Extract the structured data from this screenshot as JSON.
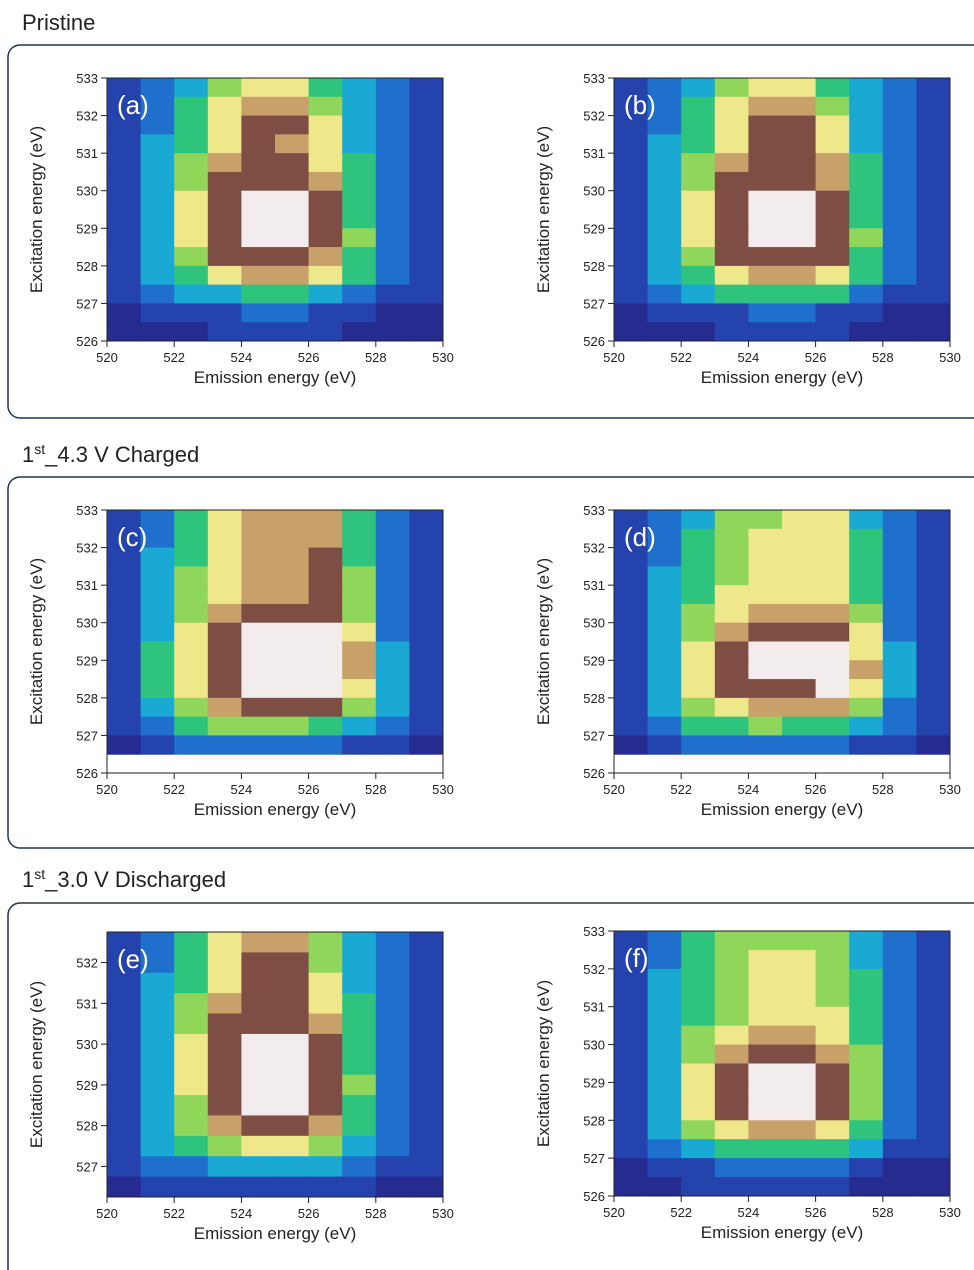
{
  "sections": [
    {
      "title": "Pristine"
    },
    {
      "title_num": "1",
      "title_sup": "st",
      "title_rest": "_4.3 V Charged"
    },
    {
      "title_num": "1",
      "title_sup": "st",
      "title_rest": "_3.0 V Discharged"
    }
  ],
  "colormap": [
    "#262b8f",
    "#2443ac",
    "#1f6fcc",
    "#1aa9d2",
    "#2fc47e",
    "#8fd65a",
    "#eee88a",
    "#c8a06a",
    "#7e4e44",
    "#f3ecec"
  ],
  "chart_data": [
    {
      "type": "heatmap",
      "title": "(a)",
      "xlabel": "Emission energy (eV)",
      "ylabel": "Excitation energy (eV)",
      "xlim": [
        520,
        530
      ],
      "ylim": [
        526,
        533
      ],
      "xticks": [
        520,
        522,
        524,
        526,
        528,
        530
      ],
      "yticks": [
        526,
        527,
        528,
        529,
        530,
        531,
        532,
        533
      ],
      "xbins": [
        520,
        521,
        522,
        523,
        524,
        525,
        526,
        527,
        528,
        529,
        530
      ],
      "ybins": [
        533,
        532.5,
        532,
        531.5,
        531,
        530.5,
        530,
        529.5,
        529,
        528.5,
        528,
        527.5,
        527,
        526.5,
        526
      ],
      "z": [
        [
          1,
          2,
          3,
          5,
          6,
          6,
          4,
          3,
          2,
          1
        ],
        [
          1,
          2,
          4,
          6,
          7,
          7,
          5,
          3,
          2,
          1
        ],
        [
          1,
          2,
          4,
          6,
          8,
          8,
          6,
          3,
          2,
          1
        ],
        [
          1,
          3,
          4,
          6,
          8,
          7,
          6,
          3,
          2,
          1
        ],
        [
          1,
          3,
          5,
          7,
          8,
          8,
          6,
          4,
          2,
          1
        ],
        [
          1,
          3,
          5,
          8,
          8,
          8,
          7,
          4,
          2,
          1
        ],
        [
          1,
          3,
          6,
          8,
          9,
          9,
          8,
          4,
          2,
          1
        ],
        [
          1,
          3,
          6,
          8,
          9,
          9,
          8,
          4,
          2,
          1
        ],
        [
          1,
          3,
          6,
          8,
          9,
          9,
          8,
          5,
          2,
          1
        ],
        [
          1,
          3,
          5,
          8,
          8,
          8,
          7,
          4,
          2,
          1
        ],
        [
          1,
          3,
          4,
          6,
          7,
          7,
          6,
          4,
          2,
          1
        ],
        [
          1,
          2,
          3,
          3,
          4,
          4,
          3,
          2,
          1,
          1
        ],
        [
          0,
          1,
          1,
          1,
          2,
          2,
          1,
          1,
          0,
          0
        ],
        [
          0,
          0,
          0,
          1,
          1,
          1,
          1,
          0,
          0,
          0
        ]
      ]
    },
    {
      "type": "heatmap",
      "title": "(b)",
      "xlabel": "Emission energy (eV)",
      "ylabel": "Excitation energy (eV)",
      "xlim": [
        520,
        530
      ],
      "ylim": [
        526,
        533
      ],
      "xticks": [
        520,
        522,
        524,
        526,
        528,
        530
      ],
      "yticks": [
        526,
        527,
        528,
        529,
        530,
        531,
        532,
        533
      ],
      "xbins": [
        520,
        521,
        522,
        523,
        524,
        525,
        526,
        527,
        528,
        529,
        530
      ],
      "ybins": [
        533,
        532.5,
        532,
        531.5,
        531,
        530.5,
        530,
        529.5,
        529,
        528.5,
        528,
        527.5,
        527,
        526.5,
        526
      ],
      "z": [
        [
          1,
          2,
          3,
          5,
          6,
          6,
          4,
          3,
          2,
          1
        ],
        [
          1,
          2,
          4,
          6,
          7,
          7,
          5,
          3,
          2,
          1
        ],
        [
          1,
          2,
          4,
          6,
          8,
          8,
          6,
          3,
          2,
          1
        ],
        [
          1,
          3,
          4,
          6,
          8,
          8,
          6,
          3,
          2,
          1
        ],
        [
          1,
          3,
          5,
          7,
          8,
          8,
          7,
          4,
          2,
          1
        ],
        [
          1,
          3,
          5,
          8,
          8,
          8,
          7,
          4,
          2,
          1
        ],
        [
          1,
          3,
          6,
          8,
          9,
          9,
          8,
          4,
          2,
          1
        ],
        [
          1,
          3,
          6,
          8,
          9,
          9,
          8,
          4,
          2,
          1
        ],
        [
          1,
          3,
          6,
          8,
          9,
          9,
          8,
          5,
          2,
          1
        ],
        [
          1,
          3,
          5,
          8,
          8,
          8,
          8,
          4,
          2,
          1
        ],
        [
          1,
          3,
          4,
          6,
          7,
          7,
          6,
          4,
          2,
          1
        ],
        [
          1,
          2,
          3,
          4,
          4,
          4,
          4,
          2,
          1,
          1
        ],
        [
          0,
          1,
          1,
          1,
          2,
          2,
          1,
          1,
          0,
          0
        ],
        [
          0,
          0,
          0,
          1,
          1,
          1,
          1,
          0,
          0,
          0
        ]
      ]
    },
    {
      "type": "heatmap",
      "title": "(c)",
      "xlabel": "Emission energy (eV)",
      "ylabel": "Excitation energy (eV)",
      "xlim": [
        520,
        530
      ],
      "ylim": [
        526,
        533
      ],
      "xticks": [
        520,
        522,
        524,
        526,
        528,
        530
      ],
      "yticks": [
        526,
        527,
        528,
        529,
        530,
        531,
        532,
        533
      ],
      "xbins": [
        520,
        521,
        522,
        523,
        524,
        525,
        526,
        527,
        528,
        529,
        530
      ],
      "ybins": [
        533,
        532.5,
        532,
        531.5,
        531,
        530.5,
        530,
        529.5,
        529,
        528.5,
        528,
        527.5,
        527,
        526.5
      ],
      "z": [
        [
          1,
          2,
          4,
          6,
          7,
          7,
          7,
          4,
          2,
          1
        ],
        [
          1,
          2,
          4,
          6,
          7,
          7,
          7,
          4,
          2,
          1
        ],
        [
          1,
          3,
          4,
          6,
          7,
          7,
          8,
          4,
          2,
          1
        ],
        [
          1,
          3,
          5,
          6,
          7,
          7,
          8,
          5,
          2,
          1
        ],
        [
          1,
          3,
          5,
          6,
          7,
          7,
          8,
          5,
          2,
          1
        ],
        [
          1,
          3,
          5,
          7,
          8,
          8,
          8,
          5,
          2,
          1
        ],
        [
          1,
          3,
          6,
          8,
          9,
          9,
          9,
          6,
          2,
          1
        ],
        [
          1,
          4,
          6,
          8,
          9,
          9,
          9,
          7,
          3,
          1
        ],
        [
          1,
          4,
          6,
          8,
          9,
          9,
          9,
          7,
          3,
          1
        ],
        [
          1,
          4,
          6,
          8,
          9,
          9,
          9,
          6,
          3,
          1
        ],
        [
          1,
          3,
          5,
          7,
          8,
          8,
          8,
          5,
          3,
          1
        ],
        [
          1,
          2,
          4,
          5,
          5,
          5,
          4,
          3,
          2,
          1
        ],
        [
          0,
          1,
          2,
          2,
          2,
          2,
          2,
          1,
          1,
          0
        ]
      ]
    },
    {
      "type": "heatmap",
      "title": "(d)",
      "xlabel": "Emission energy (eV)",
      "ylabel": "Excitation energy (eV)",
      "xlim": [
        520,
        530
      ],
      "ylim": [
        526,
        533
      ],
      "xticks": [
        520,
        522,
        524,
        526,
        528,
        530
      ],
      "yticks": [
        526,
        527,
        528,
        529,
        530,
        531,
        532,
        533
      ],
      "xbins": [
        520,
        521,
        522,
        523,
        524,
        525,
        526,
        527,
        528,
        529,
        530
      ],
      "ybins": [
        533,
        532.5,
        532,
        531.5,
        531,
        530.5,
        530,
        529.5,
        529,
        528.5,
        528,
        527.5,
        527,
        526.5
      ],
      "z": [
        [
          1,
          2,
          3,
          5,
          5,
          6,
          6,
          3,
          2,
          1
        ],
        [
          1,
          2,
          4,
          5,
          6,
          6,
          6,
          4,
          2,
          1
        ],
        [
          1,
          2,
          4,
          5,
          6,
          6,
          6,
          4,
          2,
          1
        ],
        [
          1,
          3,
          4,
          5,
          6,
          6,
          6,
          4,
          2,
          1
        ],
        [
          1,
          3,
          4,
          6,
          6,
          6,
          6,
          4,
          2,
          1
        ],
        [
          1,
          3,
          5,
          6,
          7,
          7,
          7,
          5,
          2,
          1
        ],
        [
          1,
          3,
          5,
          7,
          8,
          8,
          8,
          6,
          2,
          1
        ],
        [
          1,
          3,
          6,
          8,
          9,
          9,
          9,
          6,
          3,
          1
        ],
        [
          1,
          3,
          6,
          8,
          9,
          9,
          9,
          7,
          3,
          1
        ],
        [
          1,
          3,
          6,
          8,
          8,
          8,
          9,
          6,
          3,
          1
        ],
        [
          1,
          3,
          5,
          6,
          7,
          7,
          7,
          5,
          2,
          1
        ],
        [
          1,
          2,
          4,
          4,
          5,
          4,
          4,
          3,
          2,
          1
        ],
        [
          0,
          1,
          2,
          2,
          2,
          2,
          2,
          1,
          1,
          0
        ]
      ]
    },
    {
      "type": "heatmap",
      "title": "(e)",
      "xlabel": "Emission energy (eV)",
      "ylabel": "Excitation energy (eV)",
      "xlim": [
        520,
        530
      ],
      "ylim": [
        526.25,
        532.75
      ],
      "xticks": [
        520,
        522,
        524,
        526,
        528,
        530
      ],
      "yticks": [
        527,
        528,
        529,
        530,
        531,
        532
      ],
      "xbins": [
        520,
        521,
        522,
        523,
        524,
        525,
        526,
        527,
        528,
        529,
        530
      ],
      "ybins": [
        532.75,
        532.25,
        531.75,
        531.25,
        530.75,
        530.25,
        529.75,
        529.25,
        528.75,
        528.25,
        527.75,
        527.25,
        526.75,
        526.25
      ],
      "z": [
        [
          1,
          2,
          4,
          6,
          7,
          7,
          5,
          3,
          2,
          1
        ],
        [
          1,
          2,
          4,
          6,
          8,
          8,
          5,
          3,
          2,
          1
        ],
        [
          1,
          3,
          4,
          6,
          8,
          8,
          6,
          3,
          2,
          1
        ],
        [
          1,
          3,
          5,
          7,
          8,
          8,
          6,
          4,
          2,
          1
        ],
        [
          1,
          3,
          5,
          8,
          8,
          8,
          7,
          4,
          2,
          1
        ],
        [
          1,
          3,
          6,
          8,
          9,
          9,
          8,
          4,
          2,
          1
        ],
        [
          1,
          3,
          6,
          8,
          9,
          9,
          8,
          4,
          2,
          1
        ],
        [
          1,
          3,
          6,
          8,
          9,
          9,
          8,
          5,
          2,
          1
        ],
        [
          1,
          3,
          5,
          8,
          9,
          9,
          8,
          4,
          2,
          1
        ],
        [
          1,
          3,
          5,
          7,
          8,
          8,
          7,
          4,
          2,
          1
        ],
        [
          1,
          3,
          4,
          5,
          6,
          6,
          5,
          3,
          2,
          1
        ],
        [
          1,
          2,
          2,
          3,
          3,
          3,
          3,
          2,
          1,
          1
        ],
        [
          0,
          1,
          1,
          1,
          1,
          1,
          1,
          1,
          0,
          0
        ]
      ]
    },
    {
      "type": "heatmap",
      "title": "(f)",
      "xlabel": "Emission energy (eV)",
      "ylabel": "Excitation energy (eV)",
      "xlim": [
        520,
        530
      ],
      "ylim": [
        526,
        533
      ],
      "xticks": [
        520,
        522,
        524,
        526,
        528,
        530
      ],
      "yticks": [
        526,
        527,
        528,
        529,
        530,
        531,
        532,
        533
      ],
      "xbins": [
        520,
        521,
        522,
        523,
        524,
        525,
        526,
        527,
        528,
        529,
        530
      ],
      "ybins": [
        533,
        532.5,
        532,
        531.5,
        531,
        530.5,
        530,
        529.5,
        529,
        528.5,
        528,
        527.5,
        527,
        526.5,
        526
      ],
      "z": [
        [
          1,
          2,
          4,
          5,
          5,
          5,
          5,
          3,
          2,
          1
        ],
        [
          1,
          2,
          4,
          5,
          6,
          6,
          5,
          3,
          2,
          1
        ],
        [
          1,
          3,
          4,
          5,
          6,
          6,
          5,
          4,
          2,
          1
        ],
        [
          1,
          3,
          4,
          5,
          6,
          6,
          5,
          4,
          2,
          1
        ],
        [
          1,
          3,
          4,
          5,
          6,
          6,
          6,
          4,
          2,
          1
        ],
        [
          1,
          3,
          5,
          6,
          7,
          7,
          6,
          4,
          2,
          1
        ],
        [
          1,
          3,
          5,
          7,
          8,
          8,
          7,
          5,
          2,
          1
        ],
        [
          1,
          3,
          6,
          8,
          9,
          9,
          8,
          5,
          2,
          1
        ],
        [
          1,
          3,
          6,
          8,
          9,
          9,
          8,
          5,
          2,
          1
        ],
        [
          1,
          3,
          6,
          8,
          9,
          9,
          8,
          5,
          2,
          1
        ],
        [
          1,
          3,
          5,
          6,
          7,
          7,
          6,
          4,
          2,
          1
        ],
        [
          1,
          2,
          3,
          4,
          4,
          4,
          4,
          3,
          1,
          1
        ],
        [
          0,
          1,
          1,
          2,
          2,
          2,
          2,
          1,
          0,
          0
        ],
        [
          0,
          0,
          1,
          1,
          1,
          1,
          1,
          0,
          0,
          0
        ]
      ]
    }
  ]
}
